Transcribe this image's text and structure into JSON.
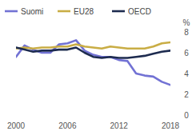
{
  "chart_data": {
    "type": "line",
    "y_label": "%",
    "x": [
      2000,
      2001,
      2002,
      2003,
      2004,
      2005,
      2006,
      2007,
      2008,
      2009,
      2010,
      2011,
      2012,
      2013,
      2014,
      2015,
      2016,
      2017,
      2018
    ],
    "series": [
      {
        "name": "Suomi",
        "color": "#7272d4",
        "values": [
          5.6,
          6.7,
          6.3,
          6.0,
          6.0,
          6.8,
          6.9,
          7.2,
          6.2,
          5.8,
          5.6,
          5.6,
          5.3,
          5.2,
          4.0,
          3.8,
          3.7,
          3.2,
          2.9
        ]
      },
      {
        "name": "EU28",
        "color": "#c9ad45",
        "values": [
          6.4,
          6.5,
          6.4,
          6.5,
          6.5,
          6.6,
          6.6,
          6.8,
          6.6,
          6.5,
          6.4,
          6.6,
          6.5,
          6.4,
          6.4,
          6.4,
          6.6,
          6.9,
          7.0
        ]
      },
      {
        "name": "OECD",
        "color": "#1d2b4f",
        "values": [
          6.5,
          6.3,
          6.1,
          6.2,
          6.2,
          6.3,
          6.3,
          6.5,
          6.0,
          5.6,
          5.5,
          5.6,
          5.5,
          5.5,
          5.6,
          5.7,
          5.9,
          6.1,
          6.2
        ]
      }
    ],
    "xlim": [
      2000,
      2018
    ],
    "xticks": [
      2000,
      2006,
      2012,
      2018
    ],
    "ylim": [
      0,
      8
    ],
    "yticks": [
      0,
      2,
      4,
      6,
      8
    ],
    "grid": false,
    "legend": "top"
  }
}
